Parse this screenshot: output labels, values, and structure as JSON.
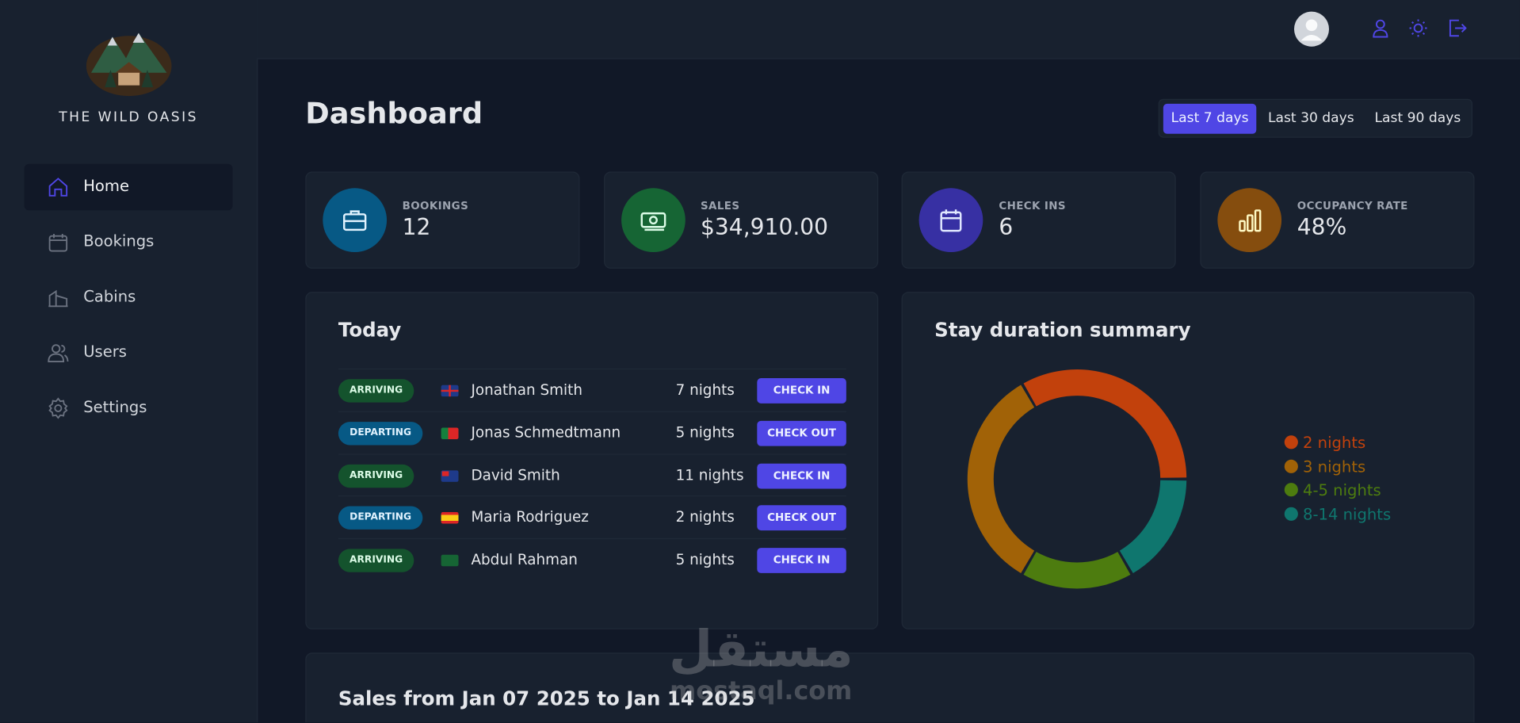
{
  "sidebar": {
    "brand": "THE WILD OASIS",
    "nav": [
      "Home",
      "Bookings",
      "Cabins",
      "Users",
      "Settings"
    ]
  },
  "header": {
    "title": "Dashboard",
    "filters": [
      "Last 7 days",
      "Last 30 days",
      "Last 90 days"
    ]
  },
  "stats": [
    {
      "label": "BOOKINGS",
      "value": "12"
    },
    {
      "label": "SALES",
      "value": "$34,910.00"
    },
    {
      "label": "CHECK INS",
      "value": "6"
    },
    {
      "label": "OCCUPANCY RATE",
      "value": "48%"
    }
  ],
  "today": {
    "title": "Today",
    "rows": [
      {
        "status": "ARRIVING",
        "guest": "Jonathan Smith",
        "nights": "7 nights",
        "action": "CHECK IN"
      },
      {
        "status": "DEPARTING",
        "guest": "Jonas Schmedtmann",
        "nights": "5 nights",
        "action": "CHECK OUT"
      },
      {
        "status": "ARRIVING",
        "guest": "David Smith",
        "nights": "11 nights",
        "action": "CHECK IN"
      },
      {
        "status": "DEPARTING",
        "guest": "Maria Rodriguez",
        "nights": "2 nights",
        "action": "CHECK OUT"
      },
      {
        "status": "ARRIVING",
        "guest": "Abdul Rahman",
        "nights": "5 nights",
        "action": "CHECK IN"
      }
    ]
  },
  "chart_data": {
    "type": "pie",
    "title": "Stay duration summary",
    "categories": [
      "2 nights",
      "3 nights",
      "4-5 nights",
      "8-14 nights"
    ],
    "values": [
      4,
      4,
      2,
      2
    ],
    "colors": [
      "#c2410c",
      "#a16207",
      "#4d7c0f",
      "#0f766e"
    ],
    "donut": true
  },
  "sales": {
    "title": "Sales from Jan 07 2025 to Jan 14 2025"
  },
  "watermark": {
    "arabic": "مستقل",
    "latin": "mostaql.com"
  }
}
